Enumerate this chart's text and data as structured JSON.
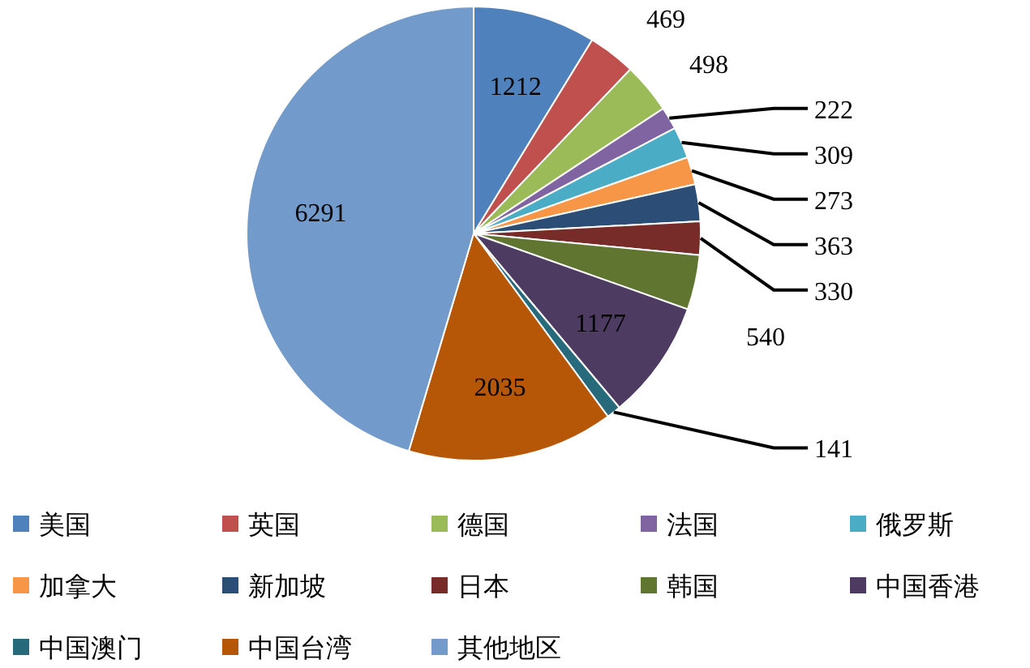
{
  "chart_data": {
    "type": "pie",
    "categories": [
      "美国",
      "英国",
      "德国",
      "法国",
      "俄罗斯",
      "加拿大",
      "新加坡",
      "日本",
      "韩国",
      "中国香港",
      "中国澳门",
      "中国台湾",
      "其他地区"
    ],
    "values": [
      1212,
      469,
      498,
      222,
      309,
      273,
      363,
      330,
      540,
      1177,
      141,
      2035,
      6291
    ],
    "colors": [
      "#4f81bd",
      "#c0504d",
      "#9bbb59",
      "#8064a2",
      "#4bacc6",
      "#f79646",
      "#2c4d75",
      "#772c2a",
      "#5f7530",
      "#4d3b62",
      "#276a7c",
      "#b65708",
      "#729aca"
    ],
    "data_labels": true,
    "legend": "bottom"
  }
}
